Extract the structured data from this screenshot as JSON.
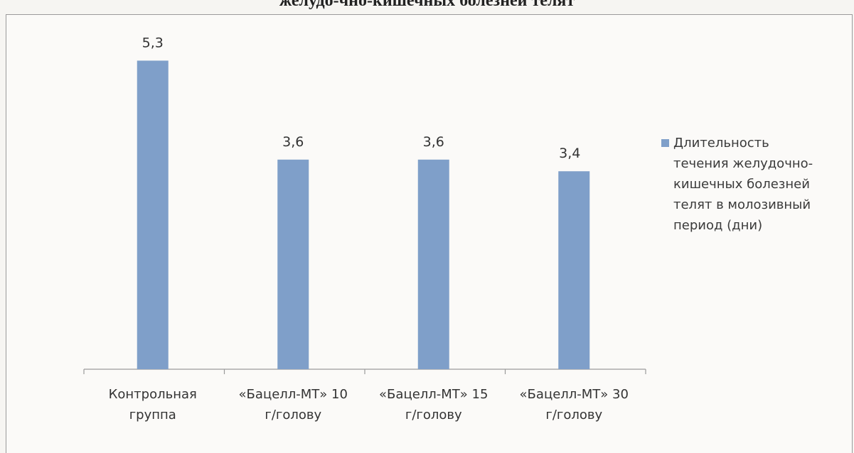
{
  "chart_data": {
    "type": "bar",
    "title": "желудо-чно-кишечных болезней телят",
    "categories": [
      [
        "Контрольная",
        "группа"
      ],
      [
        "«Бацелл-МТ» 10",
        "г/голову"
      ],
      [
        "«Бацелл-МТ» 15",
        "г/голову"
      ],
      [
        "«Бацелл-МТ» 30",
        "г/голову"
      ]
    ],
    "series": [
      {
        "name": "Длительность течения желудочно-кишечных болезней телят в молозивный период (дни)",
        "name_lines": [
          "Длительность",
          "течения желудочно-",
          "кишечных болезней",
          "телят в молозивный",
          "период (дни)"
        ],
        "values": [
          5.3,
          3.6,
          3.6,
          3.4
        ],
        "labels": [
          "5,3",
          "3,6",
          "3,6",
          "3,4"
        ],
        "color": "#7f9fc9"
      }
    ],
    "ylim": [
      0,
      6
    ],
    "grid": false,
    "legend": "right"
  }
}
